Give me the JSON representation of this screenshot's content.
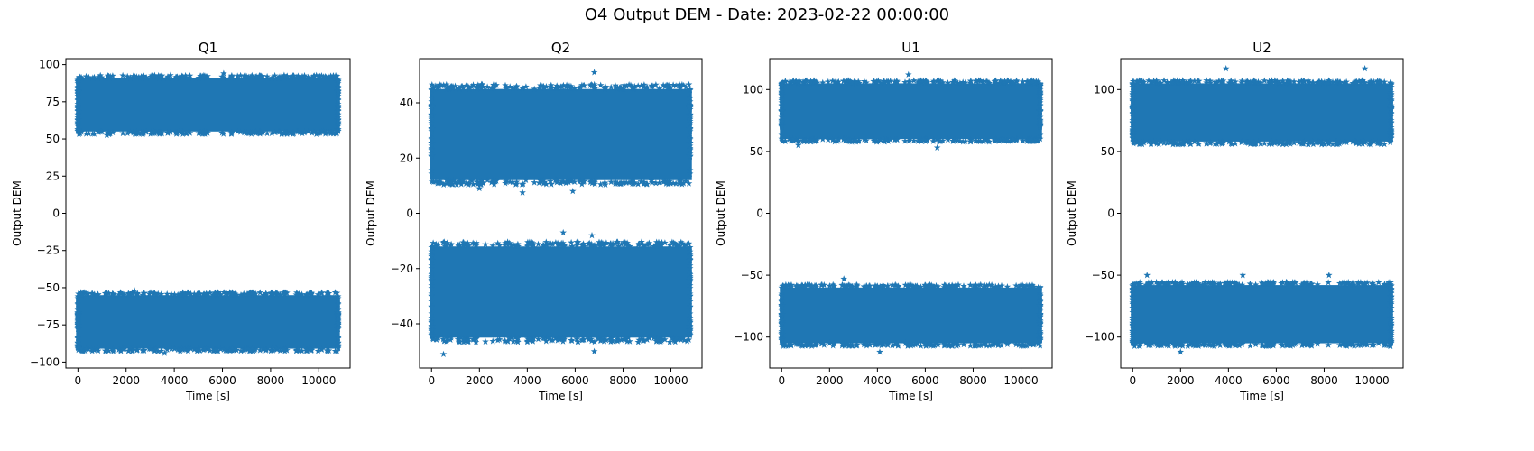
{
  "figure": {
    "title": "O4 Output DEM - Date: 2023-02-22 00:00:00"
  },
  "chart_data": [
    {
      "type": "scatter",
      "title": "Q1",
      "xlabel": "Time [s]",
      "ylabel": "Output DEM",
      "marker": "star",
      "color": "#1f77b4",
      "grid": false,
      "xlim": [
        -500,
        11300
      ],
      "ylim": [
        -104,
        104
      ],
      "xticks": [
        0,
        2000,
        4000,
        6000,
        8000,
        10000
      ],
      "yticks": [
        -100,
        -75,
        -50,
        -25,
        0,
        25,
        50,
        75,
        100
      ],
      "x_range": [
        0,
        10800
      ],
      "series": [
        {
          "band": "upper",
          "center": 73,
          "body": [
            55,
            91
          ],
          "outliers": [
            [
              6050,
              94
            ],
            [
              1200,
              52.5
            ]
          ]
        },
        {
          "band": "lower",
          "center": -73,
          "body": [
            -91,
            -55
          ],
          "outliers": [
            [
              2350,
              -52
            ],
            [
              3600,
              -94
            ]
          ]
        }
      ]
    },
    {
      "type": "scatter",
      "title": "Q2",
      "xlabel": "Time [s]",
      "ylabel": "Output DEM",
      "marker": "star",
      "color": "#1f77b4",
      "grid": false,
      "xlim": [
        -500,
        11300
      ],
      "ylim": [
        -56,
        56
      ],
      "xticks": [
        0,
        2000,
        4000,
        6000,
        8000,
        10000
      ],
      "yticks": [
        -40,
        -20,
        0,
        20,
        40
      ],
      "x_range": [
        0,
        10800
      ],
      "series": [
        {
          "band": "upper",
          "center": 28,
          "body": [
            12,
            45
          ],
          "outliers": [
            [
              6800,
              51
            ],
            [
              5900,
              8
            ],
            [
              3800,
              7.5
            ],
            [
              2000,
              9
            ]
          ]
        },
        {
          "band": "lower",
          "center": -28,
          "body": [
            -45,
            -12
          ],
          "outliers": [
            [
              5500,
              -7
            ],
            [
              6700,
              -8
            ],
            [
              500,
              -51
            ],
            [
              6800,
              -50
            ]
          ]
        }
      ]
    },
    {
      "type": "scatter",
      "title": "U1",
      "xlabel": "Time [s]",
      "ylabel": "Output DEM",
      "marker": "star",
      "color": "#1f77b4",
      "grid": false,
      "xlim": [
        -500,
        11300
      ],
      "ylim": [
        -125,
        125
      ],
      "xticks": [
        0,
        2000,
        4000,
        6000,
        8000,
        10000
      ],
      "yticks": [
        -100,
        -50,
        0,
        50,
        100
      ],
      "x_range": [
        0,
        10800
      ],
      "series": [
        {
          "band": "upper",
          "center": 82,
          "body": [
            60,
            105
          ],
          "outliers": [
            [
              5300,
              112
            ],
            [
              700,
              55
            ],
            [
              6500,
              53
            ]
          ]
        },
        {
          "band": "lower",
          "center": -82,
          "body": [
            -105,
            -60
          ],
          "outliers": [
            [
              2600,
              -53
            ],
            [
              4100,
              -112
            ]
          ]
        }
      ]
    },
    {
      "type": "scatter",
      "title": "U2",
      "xlabel": "Time [s]",
      "ylabel": "Output DEM",
      "marker": "star",
      "color": "#1f77b4",
      "grid": false,
      "xlim": [
        -500,
        11300
      ],
      "ylim": [
        -125,
        125
      ],
      "xticks": [
        0,
        2000,
        4000,
        6000,
        8000,
        10000
      ],
      "yticks": [
        -100,
        -50,
        0,
        50,
        100
      ],
      "x_range": [
        0,
        10800
      ],
      "series": [
        {
          "band": "upper",
          "center": 82,
          "body": [
            58,
            105
          ],
          "outliers": [
            [
              3900,
              117
            ],
            [
              9700,
              117
            ]
          ]
        },
        {
          "band": "lower",
          "center": -82,
          "body": [
            -105,
            -58
          ],
          "outliers": [
            [
              600,
              -50
            ],
            [
              4600,
              -50
            ],
            [
              8200,
              -50
            ],
            [
              2000,
              -112
            ]
          ]
        }
      ]
    }
  ]
}
